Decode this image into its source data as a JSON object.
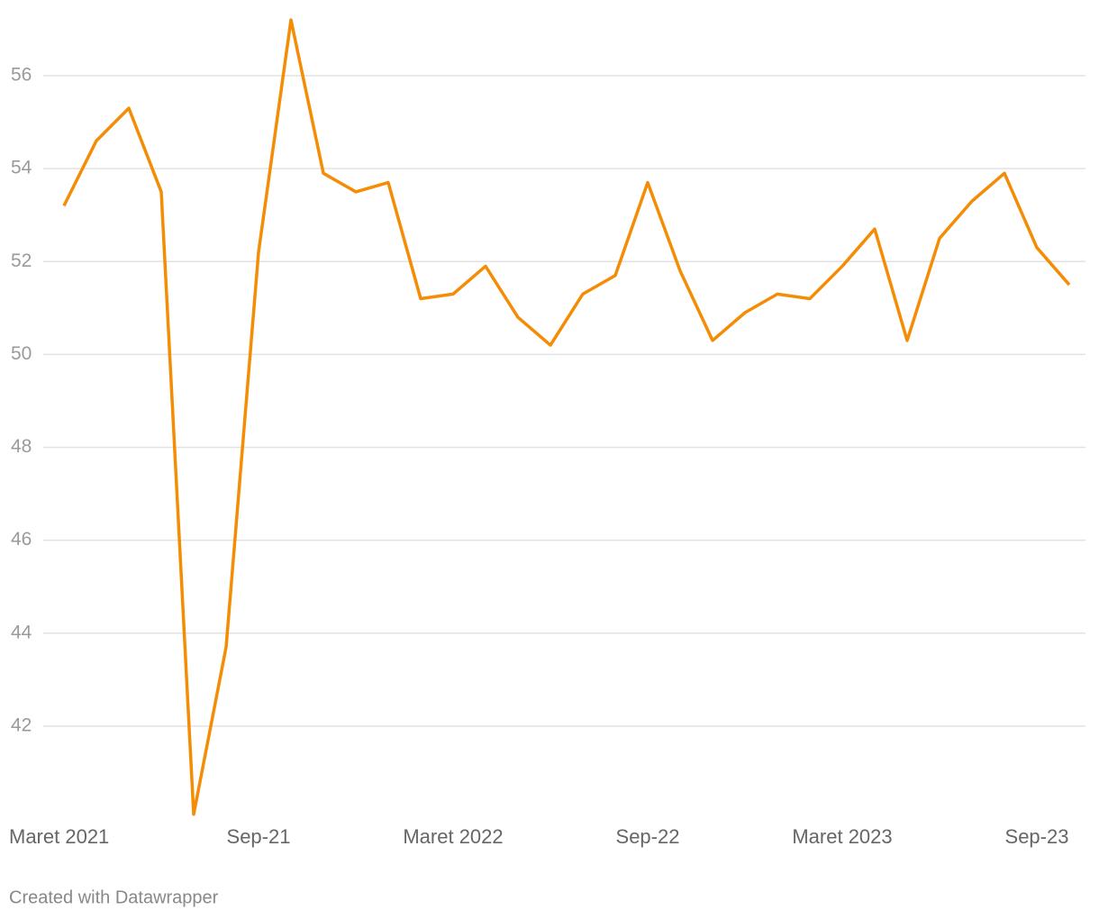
{
  "chart_data": {
    "type": "line",
    "categories": [
      "Maret 2021",
      null,
      null,
      null,
      null,
      null,
      "Sep-21",
      null,
      null,
      null,
      null,
      null,
      "Maret 2022",
      null,
      null,
      null,
      null,
      null,
      "Sep-22",
      null,
      null,
      null,
      null,
      null,
      "Maret 2023",
      null,
      null,
      null,
      null,
      null,
      "Sep-23",
      null
    ],
    "series": [
      {
        "color": "#f48c06",
        "values": [
          53.2,
          54.6,
          55.3,
          53.5,
          40.1,
          43.7,
          52.2,
          57.2,
          53.9,
          53.5,
          53.7,
          51.2,
          51.3,
          51.9,
          50.8,
          50.2,
          51.3,
          51.7,
          53.7,
          51.8,
          50.3,
          50.9,
          51.3,
          51.2,
          51.9,
          52.7,
          50.3,
          52.5,
          53.3,
          53.9,
          52.3,
          51.5
        ]
      }
    ],
    "ylim": [
      40,
      57.3
    ],
    "yticks": [
      42,
      44,
      46,
      48,
      50,
      52,
      54,
      56
    ],
    "grid": true,
    "credit": "Created with Datawrapper"
  }
}
